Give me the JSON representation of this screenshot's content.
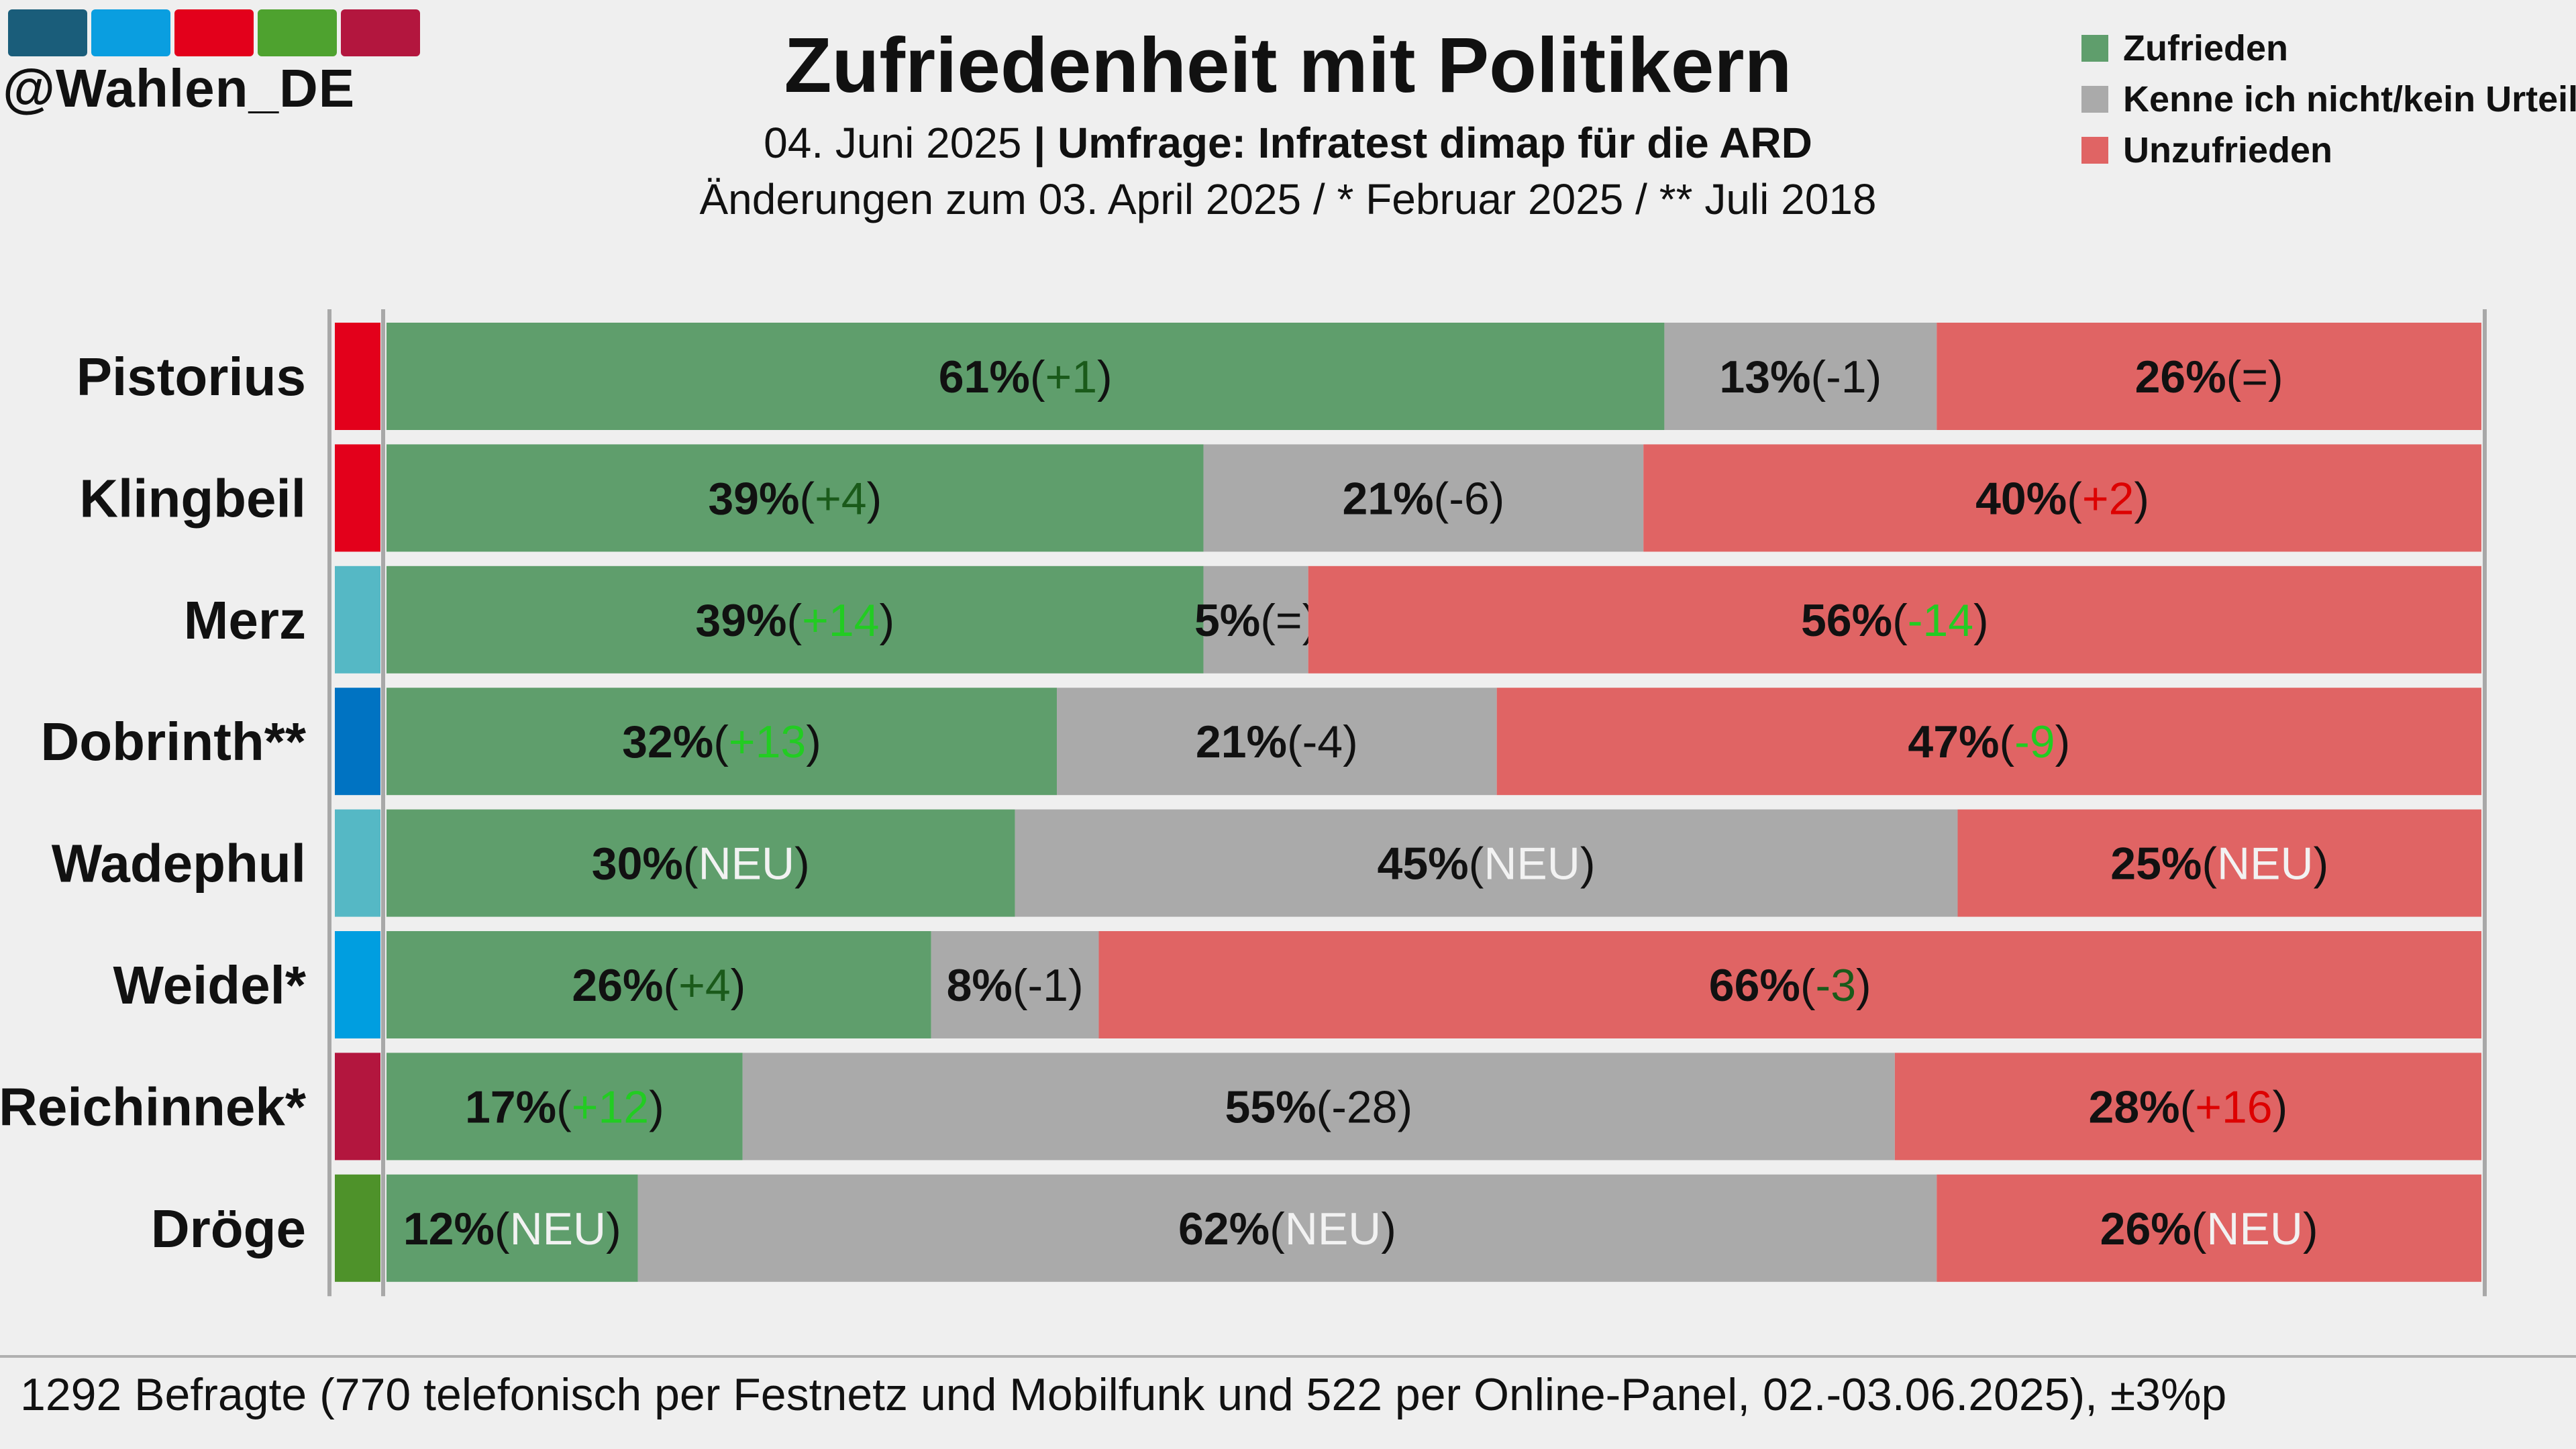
{
  "brand": {
    "handle": "@Wahlen_DE",
    "logo_colors": [
      "#1a5d7a",
      "#0a9ee0",
      "#e3001b",
      "#4ea22f",
      "#b3163e"
    ]
  },
  "header": {
    "title": "Zufriedenheit mit Politikern",
    "date": "04. Juni 2025",
    "separator": "|",
    "source": "Umfrage: Infratest dimap für die ARD",
    "changes_note": "Änderungen zum 03. April 2025 / * Februar 2025 / ** Juli 2018"
  },
  "footer": {
    "note": "1292 Befragte (770 telefonisch per Festnetz und Mobilfunk und 522 per Online-Panel, 02.-03.06.2025), ±3%p"
  },
  "colors": {
    "satisfied": "#5f9e6c",
    "unknown": "#aaaaaa",
    "dissatisfied": "#e06464",
    "change_positive": "#22cc22",
    "change_negative": "#dd0000",
    "change_neutral": "#111111",
    "change_new": "#f2f2f2",
    "change_dark": "#1a5a1a"
  },
  "chart_data": {
    "type": "bar",
    "orientation": "horizontal",
    "stacked": true,
    "title": "Zufriedenheit mit Politikern",
    "unit": "%",
    "xlim": [
      0,
      100
    ],
    "legend_position": "top-right",
    "categories": [
      "Pistorius",
      "Klingbeil",
      "Merz",
      "Dobrinth**",
      "Wadephul",
      "Weidel*",
      "Reichinnek*",
      "Dröge"
    ],
    "party_colors": [
      "#e3001b",
      "#e3001b",
      "#55b8c5",
      "#0073c2",
      "#55b8c5",
      "#009ee0",
      "#b3163e",
      "#4e922a"
    ],
    "series": [
      {
        "name": "Zufrieden",
        "color": "#5f9e6c",
        "values": [
          61,
          39,
          39,
          32,
          30,
          26,
          17,
          12
        ],
        "changes": [
          "+1",
          "+4",
          "+14",
          "+13",
          "NEU",
          "+4",
          "+12",
          "NEU"
        ],
        "change_colors": [
          "#1a5a1a",
          "#1a5a1a",
          "#22cc22",
          "#22cc22",
          "#f2f2f2",
          "#1a5a1a",
          "#22cc22",
          "#f2f2f2"
        ]
      },
      {
        "name": "Kenne ich nicht/kein Urteil",
        "color": "#aaaaaa",
        "values": [
          13,
          21,
          5,
          21,
          45,
          8,
          55,
          62
        ],
        "changes": [
          "-1",
          "-6",
          "=",
          "-4",
          "NEU",
          "-1",
          "-28",
          "NEU"
        ],
        "change_colors": [
          "#111111",
          "#111111",
          "#111111",
          "#111111",
          "#f2f2f2",
          "#111111",
          "#111111",
          "#f2f2f2"
        ]
      },
      {
        "name": "Unzufrieden",
        "color": "#e06464",
        "values": [
          26,
          40,
          56,
          47,
          25,
          66,
          28,
          26
        ],
        "changes": [
          "=",
          "+2",
          "-14",
          "-9",
          "NEU",
          "-3",
          "+16",
          "NEU"
        ],
        "change_colors": [
          "#111111",
          "#dd0000",
          "#22cc22",
          "#22cc22",
          "#f2f2f2",
          "#1a5a1a",
          "#dd0000",
          "#f2f2f2"
        ]
      }
    ]
  }
}
